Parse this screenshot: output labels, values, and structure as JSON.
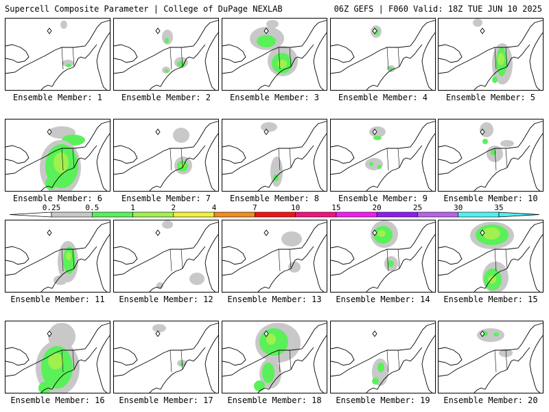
{
  "header": {
    "left": "Supercell Composite Parameter | College of DuPage NEXLAB",
    "right": "06Z GEFS | F060 Valid: 18Z TUE JUN 10 2025"
  },
  "colorbar": {
    "levels": [
      "0.25",
      "0.5",
      "1",
      "2",
      "4",
      "7",
      "10",
      "15",
      "20",
      "25",
      "30",
      "35"
    ],
    "colors": [
      "#c8c8c8",
      "#5af05a",
      "#a0f050",
      "#f0f040",
      "#f08c20",
      "#f01414",
      "#f0147a",
      "#f01ef0",
      "#8c1ef0",
      "#b464e6",
      "#50f0f0"
    ]
  },
  "members": [
    {
      "label": "Ensemble Member: 1"
    },
    {
      "label": "Ensemble Member: 2"
    },
    {
      "label": "Ensemble Member: 3"
    },
    {
      "label": "Ensemble Member: 4"
    },
    {
      "label": "Ensemble Member: 5"
    },
    {
      "label": "Ensemble Member: 6"
    },
    {
      "label": "Ensemble Member: 7"
    },
    {
      "label": "Ensemble Member: 8"
    },
    {
      "label": "Ensemble Member: 9"
    },
    {
      "label": "Ensemble Member: 10"
    },
    {
      "label": "Ensemble Member: 11"
    },
    {
      "label": "Ensemble Member: 12"
    },
    {
      "label": "Ensemble Member: 13"
    },
    {
      "label": "Ensemble Member: 14"
    },
    {
      "label": "Ensemble Member: 15"
    },
    {
      "label": "Ensemble Member: 16"
    },
    {
      "label": "Ensemble Member: 17"
    },
    {
      "label": "Ensemble Member: 18"
    },
    {
      "label": "Ensemble Member: 19"
    },
    {
      "label": "Ensemble Member: 20"
    }
  ]
}
